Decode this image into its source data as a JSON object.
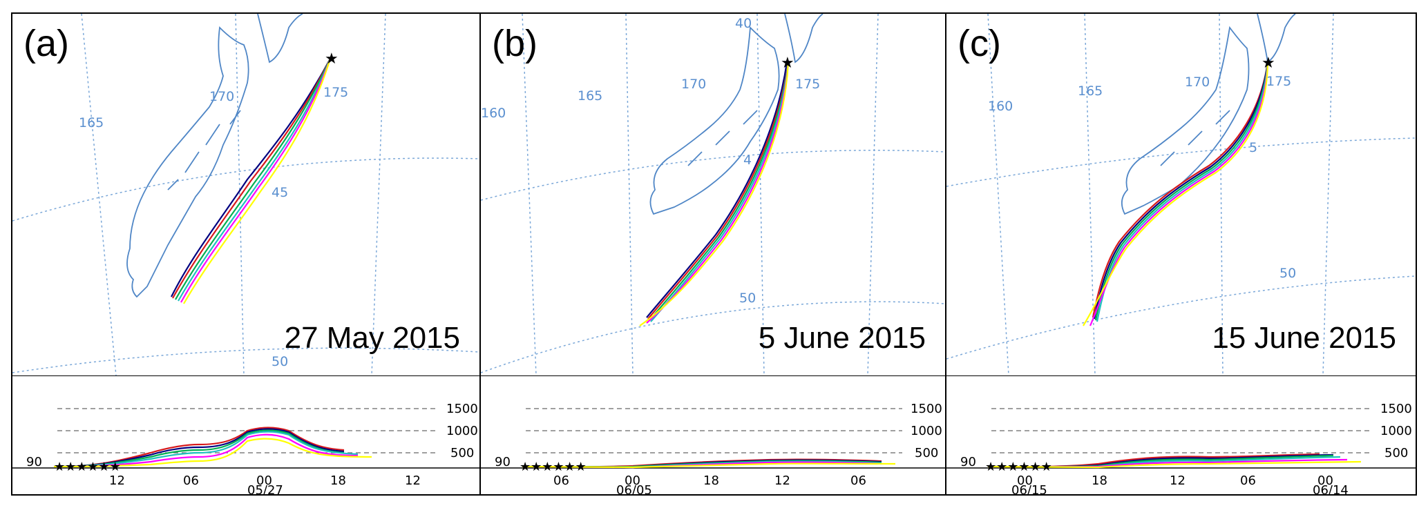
{
  "panels": [
    {
      "id": "a",
      "label": "(a)",
      "date": "27 May 2015",
      "map_labels": {
        "lon": [
          "165",
          "170",
          "175"
        ],
        "lat": [
          "45",
          "50"
        ]
      },
      "heights": [
        "1500",
        "1000",
        "500"
      ],
      "start_level": "90",
      "time_ticks": [
        "12",
        "06",
        "00",
        "18",
        "12"
      ],
      "date_tick": "05/27"
    },
    {
      "id": "b",
      "label": "(b)",
      "date": "5 June 2015",
      "map_labels": {
        "lon": [
          "40",
          "160",
          "165",
          "170",
          "175"
        ],
        "lat": [
          "4",
          "50"
        ]
      },
      "heights": [
        "1500",
        "1000",
        "500"
      ],
      "start_level": "90",
      "time_ticks": [
        "06",
        "00",
        "18",
        "12",
        "06"
      ],
      "date_tick": "06/05"
    },
    {
      "id": "c",
      "label": "(c)",
      "date": "15 June 2015",
      "map_labels": {
        "lon": [
          "160",
          "165",
          "170",
          "175"
        ],
        "lat": [
          "5",
          "50"
        ]
      },
      "heights": [
        "1500",
        "1000",
        "500"
      ],
      "start_level": "90",
      "time_ticks": [
        "00",
        "18",
        "12",
        "06",
        "00"
      ],
      "date_ticks": [
        "06/15",
        "06/14"
      ]
    }
  ],
  "colors": {
    "coast": "#4f86c6",
    "grid": "#7aa7d8",
    "trajectories": [
      "#d7191c",
      "#000080",
      "#1f3fbf",
      "#00b050",
      "#20c0c0",
      "#ff00ff",
      "#ffff00"
    ]
  }
}
